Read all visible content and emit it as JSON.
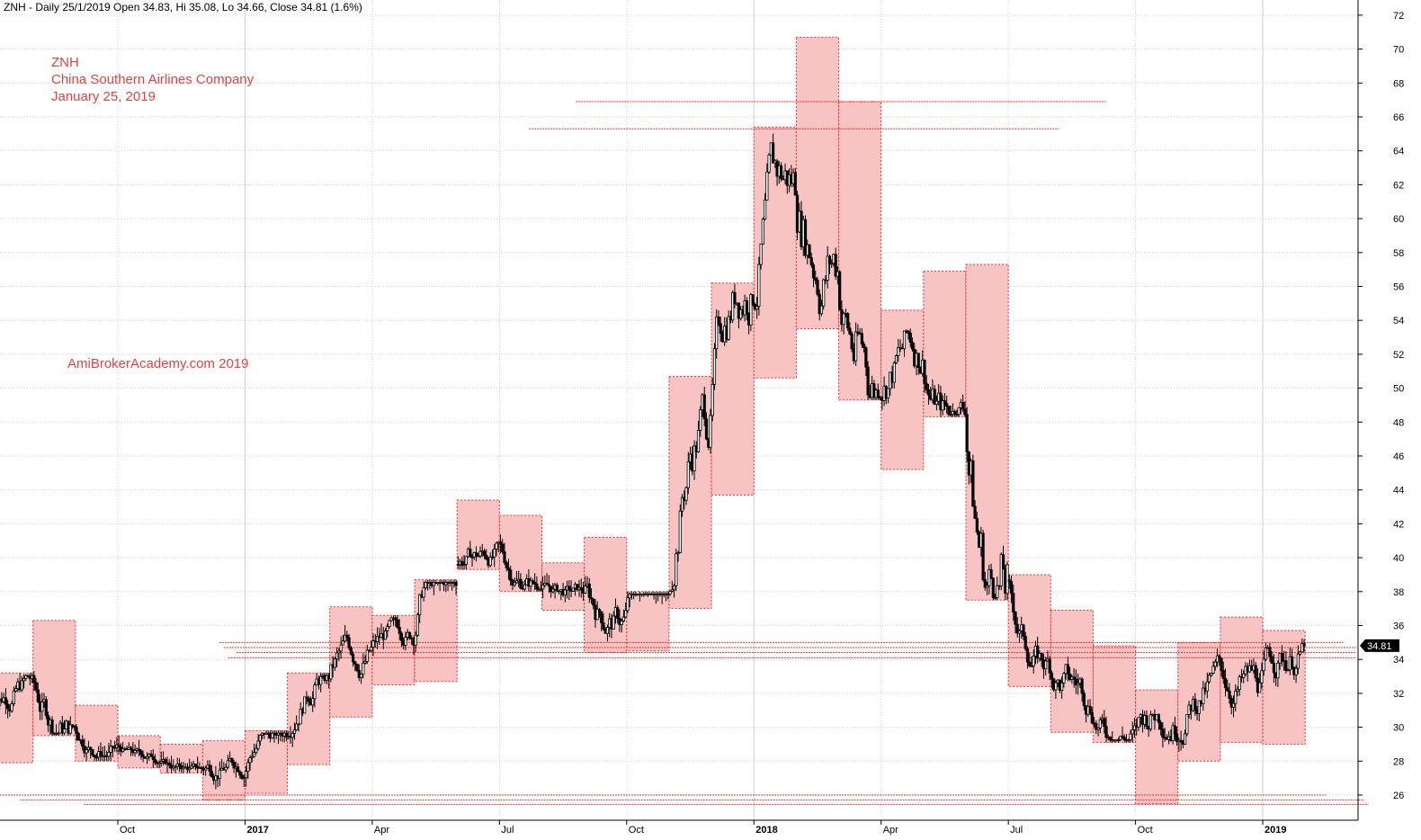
{
  "header": {
    "title": "ZNH - Daily 25/1/2019 Open 34.83, Hi 35.08, Lo 34.66, Close 34.81 (1.6%)"
  },
  "annotations": {
    "ticker": "ZNH",
    "company": "China Southern Airlines Company",
    "date": "January 25, 2019",
    "watermark": "AmiBrokerAcademy.com  2019"
  },
  "price_label": "34.81",
  "colors": {
    "box_fill": "#f8c3c3",
    "box_stroke": "#e83030",
    "line": "#e83030",
    "annotation": "#e8403c",
    "grid": "#cfcfcf",
    "candle": "#000000"
  },
  "chart_data": {
    "type": "candlestick",
    "x_axis": {
      "ticks": [
        {
          "label": "Oct",
          "bold": false,
          "month": 3
        },
        {
          "label": "2017",
          "bold": true,
          "month": 6
        },
        {
          "label": "Apr",
          "bold": false,
          "month": 9
        },
        {
          "label": "Jul",
          "bold": false,
          "month": 12
        },
        {
          "label": "Oct",
          "bold": false,
          "month": 15
        },
        {
          "label": "2018",
          "bold": true,
          "month": 18
        },
        {
          "label": "Apr",
          "bold": false,
          "month": 21
        },
        {
          "label": "Jul",
          "bold": false,
          "month": 24
        },
        {
          "label": "Oct",
          "bold": false,
          "month": 27
        },
        {
          "label": "2019",
          "bold": true,
          "month": 30
        }
      ]
    },
    "y_axis": {
      "min": 25,
      "max": 72,
      "ticks": [
        26,
        28,
        30,
        32,
        34,
        36,
        38,
        40,
        42,
        44,
        46,
        48,
        50,
        52,
        54,
        56,
        58,
        60,
        62,
        64,
        66,
        68,
        70,
        72
      ]
    },
    "last_close": 34.81,
    "monthly_ranges": [
      {
        "month": "2016-07",
        "high": 33.2,
        "low": 27.9
      },
      {
        "month": "2016-08",
        "high": 36.3,
        "low": 29.5
      },
      {
        "month": "2016-09",
        "high": 31.3,
        "low": 28.0
      },
      {
        "month": "2016-10",
        "high": 29.5,
        "low": 27.6
      },
      {
        "month": "2016-11",
        "high": 29.0,
        "low": 27.3
      },
      {
        "month": "2016-12",
        "high": 29.2,
        "low": 25.7
      },
      {
        "month": "2017-01",
        "high": 29.8,
        "low": 26.1
      },
      {
        "month": "2017-02",
        "high": 33.2,
        "low": 27.8
      },
      {
        "month": "2017-03",
        "high": 37.1,
        "low": 30.6
      },
      {
        "month": "2017-04",
        "high": 36.6,
        "low": 32.5
      },
      {
        "month": "2017-05",
        "high": 38.7,
        "low": 32.7
      },
      {
        "month": "2017-06",
        "high": 43.4,
        "low": 39.3
      },
      {
        "month": "2017-07",
        "high": 42.5,
        "low": 38.0
      },
      {
        "month": "2017-08",
        "high": 39.7,
        "low": 36.9
      },
      {
        "month": "2017-09",
        "high": 41.2,
        "low": 34.4
      },
      {
        "month": "2017-10",
        "high": 38.0,
        "low": 34.5
      },
      {
        "month": "2017-11",
        "high": 50.7,
        "low": 37.0
      },
      {
        "month": "2017-12",
        "high": 56.2,
        "low": 43.7
      },
      {
        "month": "2018-01",
        "high": 65.4,
        "low": 50.6
      },
      {
        "month": "2018-02",
        "high": 70.7,
        "low": 53.5
      },
      {
        "month": "2018-03",
        "high": 66.9,
        "low": 49.3
      },
      {
        "month": "2018-04",
        "high": 54.6,
        "low": 45.2
      },
      {
        "month": "2018-05",
        "high": 56.9,
        "low": 48.3
      },
      {
        "month": "2018-06",
        "high": 57.3,
        "low": 37.5
      },
      {
        "month": "2018-07",
        "high": 39.0,
        "low": 32.4
      },
      {
        "month": "2018-08",
        "high": 36.9,
        "low": 29.7
      },
      {
        "month": "2018-09",
        "high": 34.8,
        "low": 29.1
      },
      {
        "month": "2018-10",
        "high": 32.2,
        "low": 25.5
      },
      {
        "month": "2018-11",
        "high": 35.0,
        "low": 28.0
      },
      {
        "month": "2018-12",
        "high": 36.5,
        "low": 29.1
      },
      {
        "month": "2019-01",
        "high": 35.7,
        "low": 29.0
      }
    ],
    "support_resistance": [
      {
        "price": 66.9,
        "from_month": 13.8,
        "to_month": 26.3
      },
      {
        "price": 65.3,
        "from_month": 12.7,
        "to_month": 25.2
      },
      {
        "price": 35.0,
        "from_month": 5.4,
        "to_month": 31.9
      },
      {
        "price": 34.7,
        "from_month": 5.5,
        "to_month": 32.2
      },
      {
        "price": 34.4,
        "from_month": 5.8,
        "to_month": 32.2
      },
      {
        "price": 34.1,
        "from_month": 5.6,
        "to_month": 32.2
      },
      {
        "price": 26.0,
        "from_month": -0.15,
        "to_month": 31.5
      },
      {
        "price": 25.7,
        "from_month": 0.7,
        "to_month": 32.4
      },
      {
        "price": 25.45,
        "from_month": 2.2,
        "to_month": 32.5
      }
    ]
  }
}
